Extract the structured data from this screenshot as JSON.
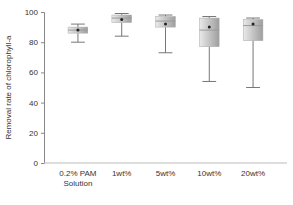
{
  "chart_data": {
    "type": "box",
    "y_label": "Removal rate of chlorophyll-a",
    "categories": [
      "0.2% PAM\nSolution",
      "1wt%",
      "5wt%",
      "10wt%",
      "20wt%"
    ],
    "boxes": [
      {
        "whisker_low": 80,
        "q1": 86,
        "median": 88,
        "q3": 90,
        "whisker_high": 92,
        "mean": 88
      },
      {
        "whisker_low": 84,
        "q1": 93,
        "median": 96,
        "q3": 98,
        "whisker_high": 99,
        "mean": 95
      },
      {
        "whisker_low": 73,
        "q1": 90,
        "median": 94,
        "q3": 97,
        "whisker_high": 98,
        "mean": 92
      },
      {
        "whisker_low": 54,
        "q1": 77,
        "median": 88,
        "q3": 96,
        "whisker_high": 97,
        "mean": 90
      },
      {
        "whisker_low": 50,
        "q1": 81,
        "median": 91,
        "q3": 95,
        "whisker_high": 96,
        "mean": 92
      }
    ],
    "color": "#c4c4c4",
    "ylim": [
      0,
      100
    ],
    "yticks": [
      0,
      20,
      40,
      60,
      80,
      100
    ],
    "grid": false
  }
}
